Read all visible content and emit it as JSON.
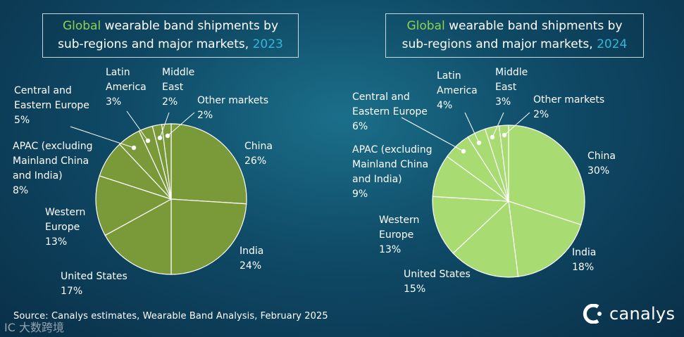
{
  "charts": {
    "left": {
      "title_part1": "Global",
      "title_part2": " wearable band shipments by",
      "title_line2": "sub-regions and major markets, ",
      "title_year": "2023"
    },
    "right": {
      "title_part1": "Global",
      "title_part2": " wearable band shipments by",
      "title_line2": "sub-regions and major markets, ",
      "title_year": "2024"
    }
  },
  "chart_data": [
    {
      "type": "pie",
      "title": "Global wearable band shipments by sub-regions and major markets, 2023",
      "slices": [
        {
          "label": "China",
          "value": 26,
          "value_label": "26%"
        },
        {
          "label": "India",
          "value": 24,
          "value_label": "24%"
        },
        {
          "label": "United States",
          "value": 17,
          "value_label": "17%"
        },
        {
          "label": "Western Europe",
          "value": 13,
          "value_label": "13%"
        },
        {
          "label": "APAC (excluding Mainland China and India)",
          "value": 8,
          "value_label": "8%"
        },
        {
          "label": "Central and Eastern Europe",
          "value": 5,
          "value_label": "5%"
        },
        {
          "label": "Latin America",
          "value": 3,
          "value_label": "3%"
        },
        {
          "label": "Middle East",
          "value": 2,
          "value_label": "2%"
        },
        {
          "label": "Other markets",
          "value": 2,
          "value_label": "2%"
        }
      ],
      "color": "#7a9a3a"
    },
    {
      "type": "pie",
      "title": "Global wearable band shipments by sub-regions and major markets, 2024",
      "slices": [
        {
          "label": "China",
          "value": 30,
          "value_label": "30%"
        },
        {
          "label": "India",
          "value": 18,
          "value_label": "18%"
        },
        {
          "label": "United States",
          "value": 15,
          "value_label": "15%"
        },
        {
          "label": "Western Europe",
          "value": 13,
          "value_label": "13%"
        },
        {
          "label": "APAC (excluding Mainland China and India)",
          "value": 9,
          "value_label": "9%"
        },
        {
          "label": "Central and Eastern Europe",
          "value": 6,
          "value_label": "6%"
        },
        {
          "label": "Latin America",
          "value": 4,
          "value_label": "4%"
        },
        {
          "label": "Middle East",
          "value": 3,
          "value_label": "3%"
        },
        {
          "label": "Other markets",
          "value": 2,
          "value_label": "2%"
        }
      ],
      "color": "#a8db72"
    }
  ],
  "source": "Source: Canalys estimates, Wearable Band Analysis, February 2025",
  "logo": "canalys",
  "watermark": "IC 大数跨境"
}
